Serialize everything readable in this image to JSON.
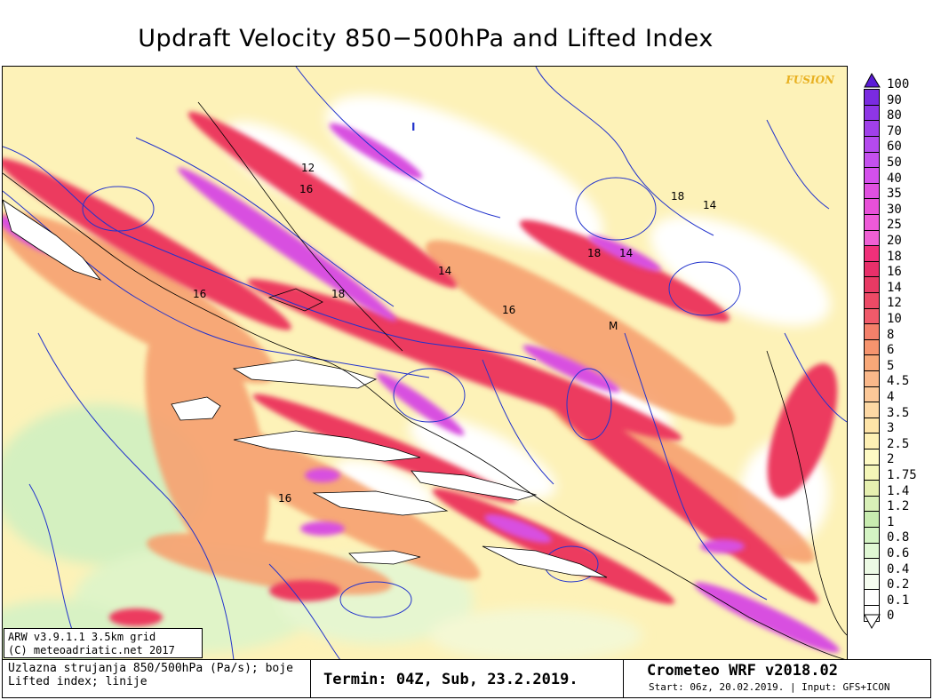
{
  "title": "Updraft Velocity 850−500hPa and Lifted Index",
  "watermark": "FUSION",
  "info_box": {
    "line1": "ARW v3.9.1.1 3.5km grid",
    "line2": "(C) meteoadriatic.net 2017"
  },
  "footer": {
    "desc_line1": "Uzlazna strujanja 850/500hPa (Pa/s); boje",
    "desc_line2": "Lifted index; linije",
    "termin": "Termin: 04Z, Sub, 23.2.2019.",
    "brand": "Crometeo WRF v2018.02",
    "start": "Start: 06z, 20.02.2019. | Input: GFS+ICON"
  },
  "colorscale": {
    "labels": [
      "100",
      "90",
      "80",
      "70",
      "60",
      "50",
      "40",
      "35",
      "30",
      "25",
      "20",
      "18",
      "16",
      "14",
      "12",
      "10",
      "8",
      "6",
      "5",
      "4.5",
      "4",
      "3.5",
      "3",
      "2.5",
      "2",
      "1.75",
      "1.4",
      "1.2",
      "1",
      "0.8",
      "0.6",
      "0.4",
      "0.2",
      "0.1",
      "0"
    ],
    "colors": [
      "#5a1bd6",
      "#7a2be0",
      "#8e36e6",
      "#a040ea",
      "#b44aee",
      "#c450ee",
      "#d450ec",
      "#e050e0",
      "#e850d8",
      "#ee5ad8",
      "#f060d4",
      "#f0307a",
      "#e8306a",
      "#e83a64",
      "#ec4a66",
      "#f05a6a",
      "#f4806a",
      "#f6946e",
      "#f8a878",
      "#fab88a",
      "#fcc898",
      "#fdd8a4",
      "#fee4a8",
      "#fef0b4",
      "#fefac4",
      "#f4f6b8",
      "#e6f0b0",
      "#d8f0b8",
      "#c8ecb0",
      "#d4f4c4",
      "#e0f8d4",
      "#ecfae4",
      "#f6fdf0",
      "#ffffff",
      "#ffffff"
    ]
  },
  "contour_labels": [
    "12",
    "16",
    "18",
    "14",
    "14",
    "18",
    "14",
    "16",
    "18",
    "16",
    "16",
    "M"
  ],
  "high_marker": "I",
  "colors": {
    "contour": "#2233cc",
    "coast": "#000000",
    "watermark": "#e8b020"
  }
}
